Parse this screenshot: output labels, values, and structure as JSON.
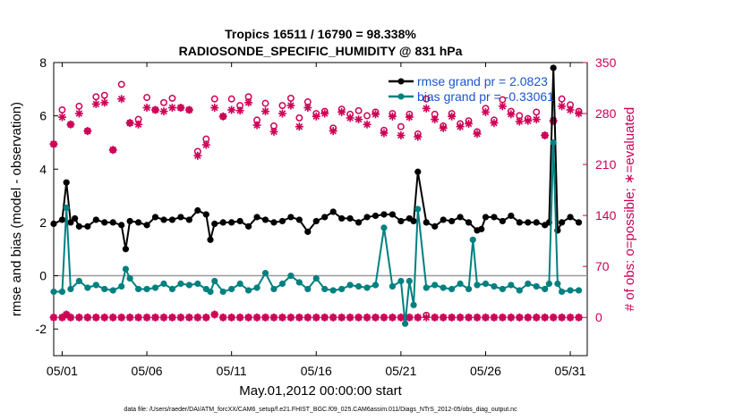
{
  "colors": {
    "rmse": "#000000",
    "bias": "#008080",
    "obs_possible": "#cc0055",
    "obs_evaluated": "#cc0055",
    "zero_line": "#9a9a9a",
    "legend_text": "#1a55cc"
  },
  "chart_data": {
    "type": "line",
    "title_line1": "Tropics 16511 / 16790 = 98.338%",
    "title_line2": "RADIOSONDE_SPECIFIC_HUMIDITY @ 831 hPa",
    "xlabel": "May.01,2012 00:00:00 start",
    "ylabel_left": "rmse and bias (model - observation)",
    "ylabel_right": "# of obs: o=possible; ∗=evaluated",
    "ylim_left": [
      -3,
      8
    ],
    "ylim_right": [
      -52.5,
      350
    ],
    "xlim": [
      0.5,
      32.0
    ],
    "yticks_left": [
      "-2",
      "0",
      "2",
      "4",
      "6",
      "8"
    ],
    "yticks_right": [
      "0",
      "70",
      "140",
      "210",
      "280",
      "350"
    ],
    "xticks": [
      {
        "day": 1,
        "label": "05/01"
      },
      {
        "day": 6,
        "label": "05/06"
      },
      {
        "day": 11,
        "label": "05/11"
      },
      {
        "day": 16,
        "label": "05/16"
      },
      {
        "day": 21,
        "label": "05/21"
      },
      {
        "day": 26,
        "label": "05/26"
      },
      {
        "day": 31,
        "label": "05/31"
      }
    ],
    "legend": [
      {
        "name": "rmse grand pr = 2.0823",
        "series": "rmse"
      },
      {
        "name": "bias grand pr = -0.33061",
        "series": "bias"
      }
    ],
    "series": [
      {
        "name": "rmse",
        "x": [
          0.5,
          1.0,
          1.25,
          1.5,
          1.75,
          2.0,
          2.5,
          3.0,
          3.5,
          4.0,
          4.5,
          4.75,
          5.0,
          5.5,
          6.0,
          6.5,
          7.0,
          7.5,
          8.0,
          8.5,
          9.0,
          9.5,
          9.75,
          10.0,
          10.5,
          11.0,
          11.5,
          12.0,
          12.5,
          13.0,
          13.5,
          14.0,
          14.5,
          15.0,
          15.5,
          16.0,
          16.5,
          17.0,
          17.5,
          18.0,
          18.5,
          19.0,
          19.5,
          20.0,
          20.5,
          21.0,
          21.5,
          21.75,
          22.0,
          22.5,
          23.0,
          23.5,
          24.0,
          24.5,
          25.0,
          25.5,
          25.75,
          26.0,
          26.5,
          27.0,
          27.5,
          28.0,
          28.5,
          29.0,
          29.5,
          29.75,
          30.0,
          30.25,
          30.5,
          31.0,
          31.5
        ],
        "values": [
          1.95,
          2.1,
          3.5,
          2.0,
          2.15,
          1.85,
          1.85,
          2.1,
          2.0,
          2.0,
          1.9,
          1.0,
          2.05,
          2.0,
          1.9,
          2.2,
          2.1,
          2.1,
          2.2,
          2.1,
          2.45,
          2.3,
          1.35,
          1.95,
          2.0,
          2.0,
          2.05,
          1.85,
          2.2,
          2.1,
          2.0,
          2.05,
          2.2,
          2.1,
          1.65,
          2.05,
          2.2,
          2.4,
          2.15,
          2.15,
          2.0,
          2.2,
          2.25,
          2.3,
          2.3,
          2.05,
          2.15,
          2.05,
          3.9,
          2.0,
          1.85,
          2.1,
          2.05,
          2.2,
          2.0,
          1.7,
          1.75,
          2.2,
          2.2,
          2.05,
          2.25,
          2.0,
          2.0,
          2.0,
          1.9,
          2.0,
          7.8,
          1.7,
          2.0,
          2.2,
          2.0
        ]
      },
      {
        "name": "bias",
        "x": [
          0.5,
          1.0,
          1.25,
          1.5,
          2.0,
          2.5,
          3.0,
          3.5,
          4.0,
          4.5,
          4.75,
          5.0,
          5.5,
          6.0,
          6.5,
          7.0,
          7.5,
          8.0,
          8.5,
          9.0,
          9.5,
          9.75,
          10.0,
          10.5,
          11.0,
          11.5,
          12.0,
          12.5,
          13.0,
          13.5,
          14.0,
          14.5,
          15.0,
          15.5,
          16.0,
          16.5,
          17.0,
          17.5,
          18.0,
          18.5,
          19.0,
          19.5,
          20.0,
          20.5,
          21.0,
          21.25,
          21.5,
          21.75,
          22.0,
          22.5,
          23.0,
          23.5,
          24.0,
          24.5,
          25.0,
          25.25,
          25.5,
          26.0,
          26.5,
          27.0,
          27.5,
          28.0,
          28.5,
          29.0,
          29.5,
          29.75,
          30.0,
          30.25,
          30.5,
          31.0,
          31.5
        ],
        "values": [
          -0.6,
          -0.6,
          2.55,
          -0.5,
          -0.2,
          -0.45,
          -0.35,
          -0.5,
          -0.55,
          -0.4,
          0.25,
          -0.1,
          -0.5,
          -0.5,
          -0.45,
          -0.3,
          -0.5,
          -0.3,
          -0.35,
          -0.3,
          -0.5,
          -0.6,
          -0.2,
          -0.6,
          -0.5,
          -0.3,
          -0.55,
          -0.45,
          0.1,
          -0.5,
          -0.3,
          0.0,
          -0.25,
          -0.5,
          -0.1,
          -0.5,
          -0.55,
          -0.5,
          -0.35,
          -0.4,
          -0.45,
          -0.35,
          1.8,
          -0.4,
          -0.2,
          -1.8,
          -0.2,
          -1.1,
          2.5,
          -0.45,
          -0.35,
          -0.45,
          -0.5,
          -0.3,
          -0.5,
          1.35,
          -0.35,
          -0.3,
          -0.4,
          -0.5,
          -0.35,
          -0.55,
          -0.3,
          -0.4,
          -0.5,
          -0.3,
          5.0,
          -0.3,
          -0.6,
          -0.55,
          -0.55
        ]
      },
      {
        "name": "obs_possible",
        "x": [
          0.5,
          1.0,
          1.5,
          2.0,
          2.5,
          3.0,
          3.5,
          4.0,
          4.5,
          5.0,
          5.5,
          6.0,
          6.5,
          7.0,
          7.5,
          8.0,
          8.5,
          9.0,
          9.5,
          10.0,
          10.5,
          11.0,
          11.5,
          12.0,
          12.5,
          13.0,
          13.5,
          14.0,
          14.5,
          15.0,
          15.5,
          16.0,
          16.5,
          17.0,
          17.5,
          18.0,
          18.5,
          19.0,
          19.5,
          20.0,
          20.5,
          21.0,
          21.5,
          22.0,
          22.5,
          23.0,
          23.5,
          24.0,
          24.5,
          25.0,
          25.5,
          26.0,
          26.5,
          27.0,
          27.5,
          28.0,
          28.5,
          29.0,
          29.5,
          30.0,
          30.5,
          31.0,
          31.5
        ],
        "values": [
          238,
          285,
          265,
          290,
          256,
          303,
          305,
          230,
          320,
          267,
          272,
          302,
          285,
          295,
          301,
          288,
          285,
          228,
          245,
          300,
          276,
          300,
          291,
          303,
          271,
          294,
          263,
          291,
          301,
          274,
          296,
          280,
          283,
          260,
          286,
          279,
          284,
          277,
          282,
          257,
          280,
          262,
          279,
          252,
          300,
          279,
          263,
          280,
          266,
          270,
          255,
          287,
          271,
          299,
          283,
          277,
          273,
          282,
          250,
          270,
          300,
          292,
          283
        ]
      },
      {
        "name": "obs_evaluated",
        "x": [
          0.5,
          1.0,
          1.5,
          2.0,
          2.5,
          3.0,
          3.5,
          4.0,
          4.5,
          5.0,
          5.5,
          6.0,
          6.5,
          7.0,
          7.5,
          8.0,
          8.5,
          9.0,
          9.5,
          10.0,
          10.5,
          11.0,
          11.5,
          12.0,
          12.5,
          13.0,
          13.5,
          14.0,
          14.5,
          15.0,
          15.5,
          16.0,
          16.5,
          17.0,
          17.5,
          18.0,
          18.5,
          19.0,
          19.5,
          20.0,
          20.5,
          21.0,
          21.5,
          22.0,
          22.5,
          23.0,
          23.5,
          24.0,
          24.5,
          25.0,
          25.5,
          26.0,
          26.5,
          27.0,
          27.5,
          28.0,
          28.5,
          29.0,
          29.5,
          30.0,
          30.5,
          31.0,
          31.5
        ],
        "values": [
          238,
          275,
          265,
          280,
          256,
          293,
          295,
          230,
          300,
          267,
          265,
          288,
          285,
          283,
          288,
          288,
          285,
          222,
          237,
          288,
          276,
          285,
          284,
          295,
          264,
          283,
          255,
          280,
          291,
          262,
          288,
          276,
          280,
          256,
          282,
          274,
          272,
          265,
          279,
          253,
          276,
          250,
          275,
          248,
          287,
          272,
          260,
          276,
          262,
          266,
          252,
          282,
          267,
          290,
          279,
          269,
          270,
          272,
          250,
          270,
          290,
          285,
          280
        ]
      },
      {
        "name": "obs_zero_possible",
        "x": [
          0.5,
          1.0,
          1.25,
          1.5,
          2.0,
          2.5,
          3.0,
          3.5,
          4.0,
          4.5,
          5.0,
          5.5,
          6.0,
          6.5,
          7.0,
          7.5,
          8.0,
          8.5,
          9.0,
          9.5,
          10.0,
          10.5,
          11.0,
          11.5,
          12.0,
          12.5,
          13.0,
          13.5,
          14.0,
          14.5,
          15.0,
          15.5,
          16.0,
          16.5,
          17.0,
          17.5,
          18.0,
          18.5,
          19.0,
          19.5,
          20.0,
          20.5,
          21.0,
          21.5,
          22.0,
          22.5,
          23.0,
          23.5,
          24.0,
          24.5,
          25.0,
          25.5,
          26.0,
          26.5,
          27.0,
          27.5,
          28.0,
          28.5,
          29.0,
          29.5,
          30.0,
          30.5,
          31.0,
          31.5
        ],
        "values": [
          0,
          0,
          4,
          0,
          0,
          0,
          0,
          0,
          0,
          0,
          0,
          0,
          0,
          0,
          0,
          0,
          0,
          0,
          0,
          0,
          4,
          0,
          0,
          0,
          0,
          0,
          0,
          0,
          0,
          0,
          0,
          0,
          0,
          0,
          0,
          0,
          0,
          0,
          0,
          0,
          0,
          0,
          0,
          0,
          0,
          3,
          0,
          0,
          0,
          0,
          0,
          0,
          0,
          0,
          0,
          0,
          0,
          0,
          0,
          0,
          0,
          0,
          0,
          0
        ]
      },
      {
        "name": "obs_zero_evaluated",
        "x": [
          0.5,
          1.0,
          1.25,
          1.5,
          2.0,
          2.5,
          3.0,
          3.5,
          4.0,
          4.5,
          5.0,
          5.5,
          6.0,
          6.5,
          7.0,
          7.5,
          8.0,
          8.5,
          9.0,
          9.5,
          10.0,
          10.5,
          11.0,
          11.5,
          12.0,
          12.5,
          13.0,
          13.5,
          14.0,
          14.5,
          15.0,
          15.5,
          16.0,
          16.5,
          17.0,
          17.5,
          18.0,
          18.5,
          19.0,
          19.5,
          20.0,
          20.5,
          21.0,
          21.5,
          22.0,
          22.5,
          23.0,
          23.5,
          24.0,
          24.5,
          25.0,
          25.5,
          26.0,
          26.5,
          27.0,
          27.5,
          28.0,
          28.5,
          29.0,
          29.5,
          30.0,
          30.5,
          31.0,
          31.5
        ],
        "values": [
          0,
          0,
          4,
          0,
          0,
          0,
          0,
          0,
          0,
          0,
          0,
          0,
          0,
          0,
          0,
          0,
          0,
          0,
          0,
          0,
          4,
          0,
          0,
          0,
          0,
          0,
          0,
          0,
          0,
          0,
          0,
          0,
          0,
          0,
          0,
          0,
          0,
          0,
          0,
          0,
          0,
          0,
          0,
          0,
          0,
          0,
          0,
          0,
          0,
          0,
          0,
          0,
          0,
          0,
          0,
          0,
          0,
          0,
          0,
          0,
          0,
          0,
          0,
          0
        ]
      }
    ]
  },
  "footnote": "data file: /Users/raeder/DAI/ATM_forcXX/CAM6_setup/f.e21.FHIST_BGC.f09_025.CAM6assim.011/Diags_NTrS_2012-05/obs_diag_output.nc"
}
